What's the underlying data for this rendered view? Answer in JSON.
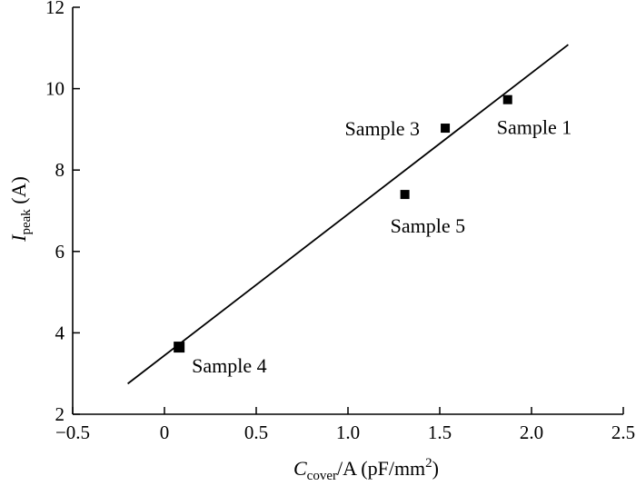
{
  "chart_data": {
    "type": "scatter",
    "xlim": [
      -0.5,
      2.5
    ],
    "ylim": [
      2,
      12
    ],
    "xticks": [
      -0.5,
      0,
      0.5,
      1.0,
      1.5,
      2.0,
      2.5
    ],
    "xtick_labels": [
      "−0.5",
      "0",
      "0.5",
      "1.0",
      "1.5",
      "2.0",
      "2.5"
    ],
    "yticks": [
      2,
      4,
      6,
      8,
      10,
      12
    ],
    "ytick_labels": [
      "2",
      "4",
      "6",
      "8",
      "10",
      "12"
    ],
    "xlabel": {
      "main": "C",
      "sub": "cover",
      "mid": "/A (pF/mm",
      "sup": "2",
      "end": ")"
    },
    "ylabel": {
      "main": "I",
      "sub": "peak",
      "end": " (A)"
    },
    "grid": false,
    "points": [
      {
        "label": "Sample 1",
        "x": 1.87,
        "y": 9.73
      },
      {
        "label": "Sample 3",
        "x": 1.53,
        "y": 9.03
      },
      {
        "label": "Sample 5",
        "x": 1.31,
        "y": 7.4
      },
      {
        "label": "Sample 4",
        "x": 0.08,
        "y": 3.65
      }
    ],
    "fit_line": {
      "x": [
        -0.2,
        2.2
      ],
      "y": [
        2.75,
        11.08
      ]
    },
    "marker_color": "#000000",
    "line_color": "#000000"
  }
}
